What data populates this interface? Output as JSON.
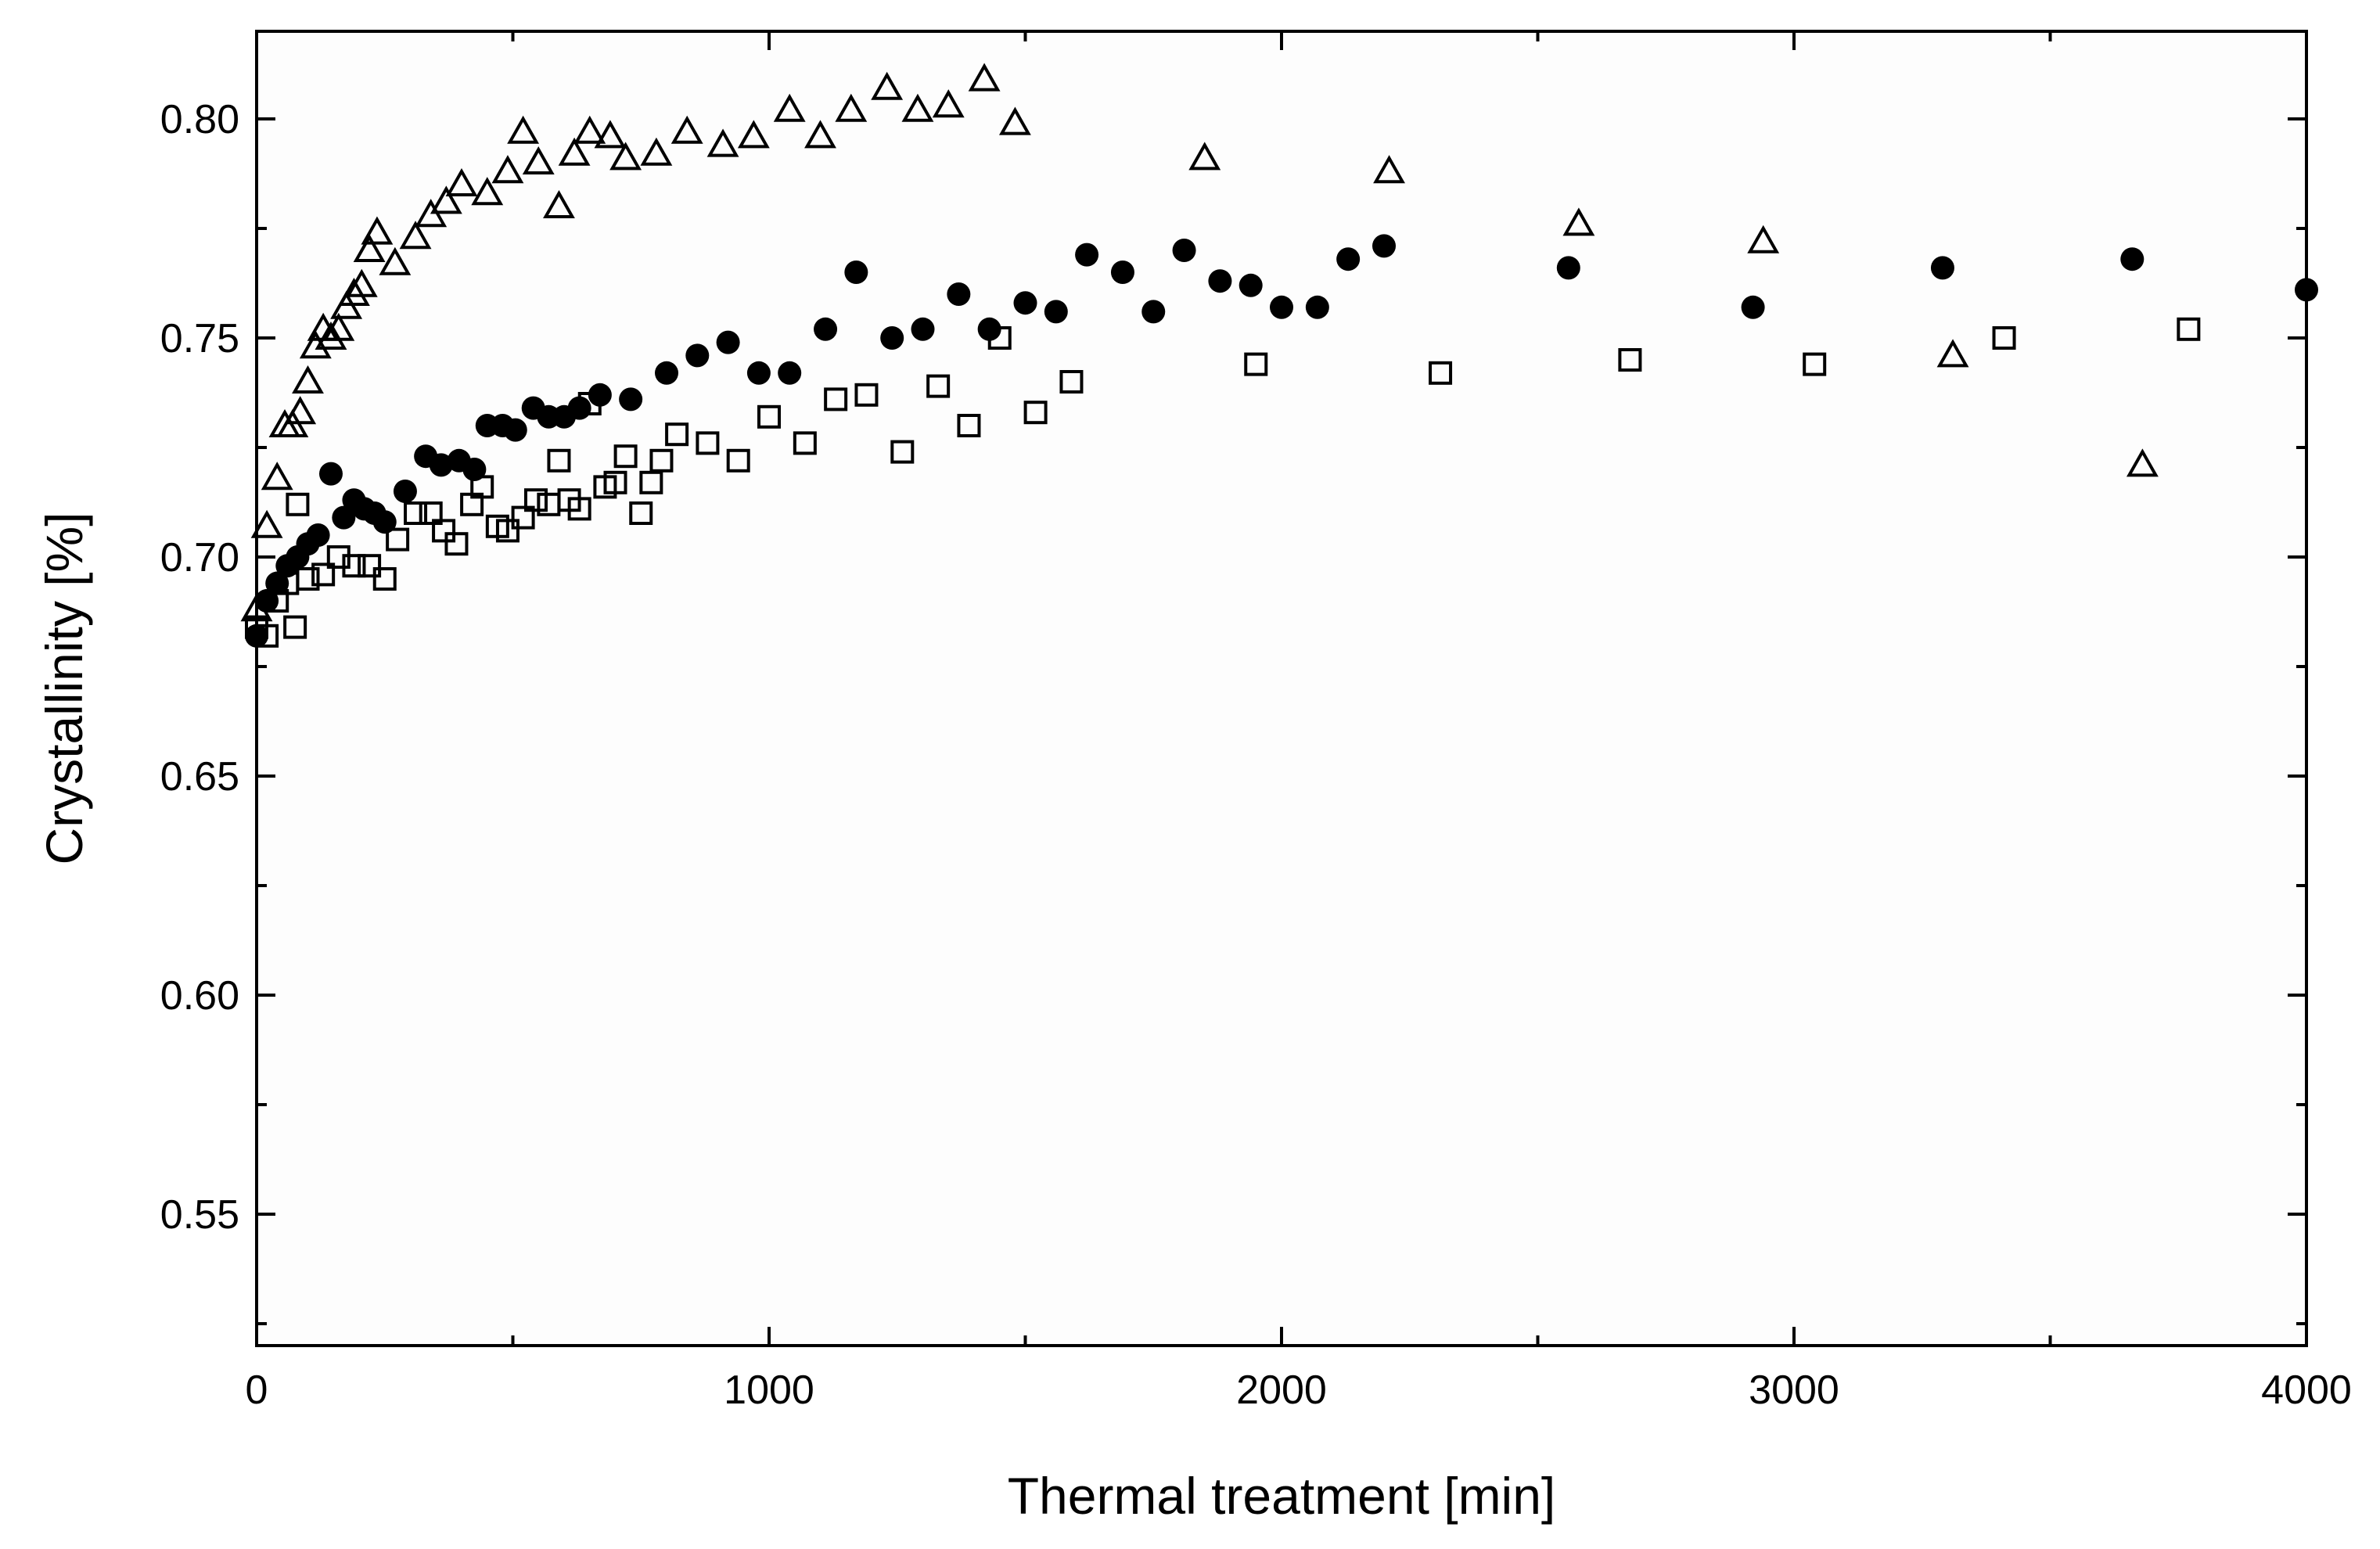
{
  "chart_data": {
    "type": "scatter",
    "title": "",
    "xlabel": "Thermal treatment [min]",
    "ylabel": "Crystallinity [%]",
    "xlim": [
      0,
      4000
    ],
    "ylim": [
      0.52,
      0.82
    ],
    "xticks": [
      0,
      1000,
      2000,
      3000,
      4000
    ],
    "xtick_labels": [
      "0",
      "1000",
      "2000",
      "3000",
      "4000"
    ],
    "yticks": [
      0.55,
      0.6,
      0.65,
      0.7,
      0.75,
      0.8
    ],
    "ytick_labels": [
      "0.55",
      "0.60",
      "0.65",
      "0.70",
      "0.75",
      "0.80"
    ],
    "grid": false,
    "legend": "none",
    "series": [
      {
        "name": "filled circles",
        "marker": "circle-filled",
        "color": "#000000",
        "points": [
          [
            0,
            0.682
          ],
          [
            20,
            0.69
          ],
          [
            40,
            0.694
          ],
          [
            60,
            0.698
          ],
          [
            80,
            0.7
          ],
          [
            100,
            0.703
          ],
          [
            120,
            0.705
          ],
          [
            145,
            0.719
          ],
          [
            170,
            0.709
          ],
          [
            190,
            0.713
          ],
          [
            210,
            0.711
          ],
          [
            230,
            0.71
          ],
          [
            250,
            0.708
          ],
          [
            290,
            0.715
          ],
          [
            330,
            0.723
          ],
          [
            360,
            0.721
          ],
          [
            395,
            0.722
          ],
          [
            425,
            0.72
          ],
          [
            450,
            0.73
          ],
          [
            480,
            0.73
          ],
          [
            505,
            0.729
          ],
          [
            540,
            0.734
          ],
          [
            570,
            0.732
          ],
          [
            600,
            0.732
          ],
          [
            630,
            0.734
          ],
          [
            670,
            0.737
          ],
          [
            730,
            0.736
          ],
          [
            800,
            0.742
          ],
          [
            860,
            0.746
          ],
          [
            920,
            0.749
          ],
          [
            980,
            0.742
          ],
          [
            1040,
            0.742
          ],
          [
            1110,
            0.752
          ],
          [
            1170,
            0.765
          ],
          [
            1240,
            0.75
          ],
          [
            1300,
            0.752
          ],
          [
            1370,
            0.76
          ],
          [
            1430,
            0.752
          ],
          [
            1500,
            0.758
          ],
          [
            1560,
            0.756
          ],
          [
            1620,
            0.769
          ],
          [
            1690,
            0.765
          ],
          [
            1750,
            0.756
          ],
          [
            1810,
            0.77
          ],
          [
            1880,
            0.763
          ],
          [
            1940,
            0.762
          ],
          [
            2000,
            0.757
          ],
          [
            2070,
            0.757
          ],
          [
            2130,
            0.768
          ],
          [
            2200,
            0.771
          ],
          [
            2560,
            0.766
          ],
          [
            2920,
            0.757
          ],
          [
            3290,
            0.766
          ],
          [
            3660,
            0.768
          ],
          [
            4000,
            0.761
          ]
        ]
      },
      {
        "name": "open squares",
        "marker": "square-open",
        "color": "#000000",
        "points": [
          [
            0,
            0.684
          ],
          [
            20,
            0.682
          ],
          [
            40,
            0.69
          ],
          [
            60,
            0.694
          ],
          [
            75,
            0.684
          ],
          [
            80,
            0.712
          ],
          [
            100,
            0.695
          ],
          [
            130,
            0.696
          ],
          [
            160,
            0.7
          ],
          [
            190,
            0.698
          ],
          [
            220,
            0.698
          ],
          [
            250,
            0.695
          ],
          [
            275,
            0.704
          ],
          [
            310,
            0.71
          ],
          [
            340,
            0.71
          ],
          [
            365,
            0.706
          ],
          [
            390,
            0.703
          ],
          [
            420,
            0.712
          ],
          [
            440,
            0.716
          ],
          [
            470,
            0.707
          ],
          [
            490,
            0.706
          ],
          [
            520,
            0.709
          ],
          [
            545,
            0.713
          ],
          [
            570,
            0.712
          ],
          [
            590,
            0.722
          ],
          [
            610,
            0.713
          ],
          [
            630,
            0.711
          ],
          [
            650,
            0.735
          ],
          [
            680,
            0.716
          ],
          [
            700,
            0.717
          ],
          [
            720,
            0.723
          ],
          [
            750,
            0.71
          ],
          [
            770,
            0.717
          ],
          [
            790,
            0.722
          ],
          [
            820,
            0.728
          ],
          [
            880,
            0.726
          ],
          [
            940,
            0.722
          ],
          [
            1000,
            0.732
          ],
          [
            1070,
            0.726
          ],
          [
            1130,
            0.736
          ],
          [
            1190,
            0.737
          ],
          [
            1260,
            0.724
          ],
          [
            1330,
            0.739
          ],
          [
            1390,
            0.73
          ],
          [
            1450,
            0.75
          ],
          [
            1520,
            0.733
          ],
          [
            1590,
            0.74
          ],
          [
            1950,
            0.744
          ],
          [
            2310,
            0.742
          ],
          [
            2680,
            0.745
          ],
          [
            3040,
            0.744
          ],
          [
            3410,
            0.75
          ],
          [
            3770,
            0.752
          ]
        ]
      },
      {
        "name": "open triangles",
        "marker": "triangle-open",
        "color": "#000000",
        "points": [
          [
            0,
            0.688
          ],
          [
            20,
            0.707
          ],
          [
            40,
            0.718
          ],
          [
            55,
            0.73
          ],
          [
            70,
            0.73
          ],
          [
            85,
            0.733
          ],
          [
            100,
            0.74
          ],
          [
            115,
            0.748
          ],
          [
            130,
            0.752
          ],
          [
            145,
            0.75
          ],
          [
            160,
            0.752
          ],
          [
            175,
            0.757
          ],
          [
            190,
            0.76
          ],
          [
            205,
            0.762
          ],
          [
            220,
            0.77
          ],
          [
            235,
            0.774
          ],
          [
            270,
            0.767
          ],
          [
            310,
            0.773
          ],
          [
            340,
            0.778
          ],
          [
            370,
            0.781
          ],
          [
            400,
            0.785
          ],
          [
            450,
            0.783
          ],
          [
            490,
            0.788
          ],
          [
            520,
            0.797
          ],
          [
            550,
            0.79
          ],
          [
            590,
            0.78
          ],
          [
            620,
            0.792
          ],
          [
            650,
            0.797
          ],
          [
            690,
            0.796
          ],
          [
            720,
            0.791
          ],
          [
            780,
            0.792
          ],
          [
            840,
            0.797
          ],
          [
            910,
            0.794
          ],
          [
            970,
            0.796
          ],
          [
            1040,
            0.802
          ],
          [
            1100,
            0.796
          ],
          [
            1160,
            0.802
          ],
          [
            1230,
            0.807
          ],
          [
            1290,
            0.802
          ],
          [
            1350,
            0.803
          ],
          [
            1420,
            0.809
          ],
          [
            1480,
            0.799
          ],
          [
            1850,
            0.791
          ],
          [
            2210,
            0.788
          ],
          [
            2580,
            0.776
          ],
          [
            2940,
            0.772
          ],
          [
            3310,
            0.746
          ],
          [
            3680,
            0.721
          ]
        ]
      }
    ]
  }
}
